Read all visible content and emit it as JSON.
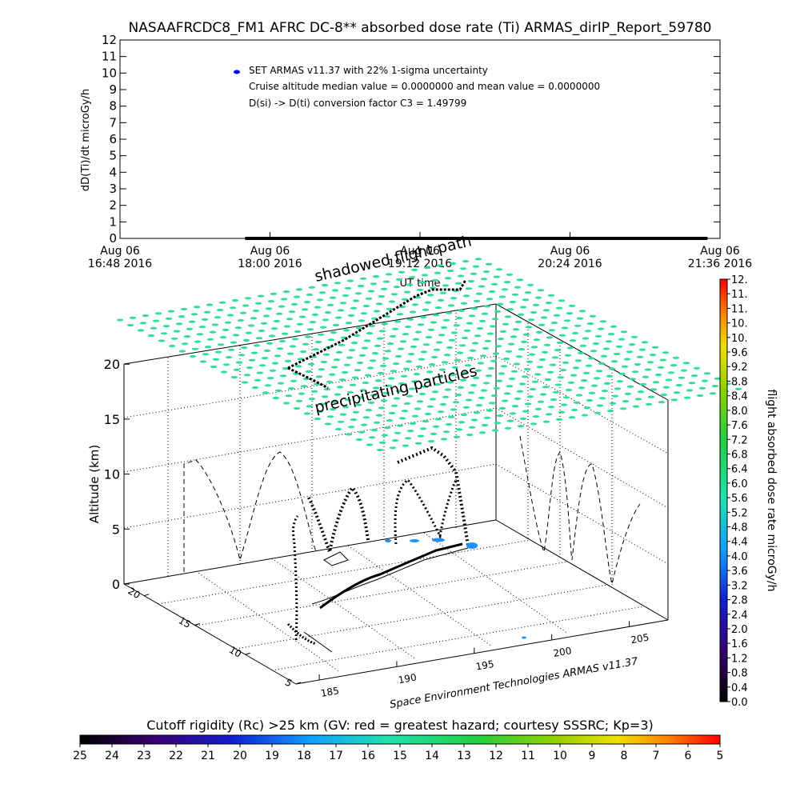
{
  "title": "NASAAFRCDC8_FM1 AFRC DC-8** absorbed dose rate (Ti) ARMAS_dirIP_Report_59780",
  "chart_data": [
    {
      "type": "line",
      "ylabel": "dD(Ti)/dt microGy/h",
      "xlabel": "UT time",
      "ylim": [
        0,
        12
      ],
      "yticks": [
        "0",
        "1",
        "2",
        "3",
        "4",
        "5",
        "6",
        "7",
        "8",
        "9",
        "10",
        "11",
        "12"
      ],
      "xticks": [
        {
          "line1": "Aug 06",
          "line2": "16:48 2016"
        },
        {
          "line1": "Aug 06",
          "line2": "18:00 2016"
        },
        {
          "line1": "Aug 06",
          "line2": "19:12 2016"
        },
        {
          "line1": "Aug 06",
          "line2": "20:24 2016"
        },
        {
          "line1": "Aug 06",
          "line2": "21:36 2016"
        }
      ],
      "x_start": "2016-08-06 16:48",
      "x_end": "2016-08-06 21:36",
      "series": [
        {
          "name": "SET ARMAS v11.37 with 22% 1-sigma uncertainty",
          "color": "#0000ff",
          "points": [
            [
              "2016-08-06 17:48",
              0
            ],
            [
              "2016-08-06 21:30",
              0
            ]
          ]
        }
      ],
      "legend": {
        "position": "top-left",
        "entries": [
          "SET ARMAS v11.37 with 22% 1-sigma uncertainty",
          "Cruise altitude median value = 0.0000000 and mean value = 0.0000000",
          "D(si) -> D(ti) conversion factor C3 = 1.49799"
        ]
      },
      "grid": false
    },
    {
      "type": "scatter",
      "title": "flight path",
      "zlabel": "Altitude (km)",
      "zticks": [
        "0",
        "5",
        "10",
        "15",
        "20"
      ],
      "x_ticks": [
        "185",
        "190",
        "195",
        "200",
        "205"
      ],
      "y_ticks": [
        "5",
        "10",
        "15",
        "20"
      ],
      "annotations": [
        "shadowed flight path",
        "precipitating particles"
      ],
      "footer": "Space Environment Technologies ARMAS v11.37",
      "grid": true
    }
  ],
  "colorbar_right": {
    "label": "flight absorbed dose rate microGy/h",
    "ticks": [
      "0.0",
      "0.4",
      "0.8",
      "1.2",
      "1.6",
      "2.0",
      "2.4",
      "2.8",
      "3.2",
      "3.6",
      "4.0",
      "4.4",
      "4.8",
      "5.2",
      "5.6",
      "6.0",
      "6.4",
      "6.8",
      "7.2",
      "7.6",
      "8.0",
      "8.4",
      "8.8",
      "9.2",
      "9.6",
      "10.",
      "10.",
      "11.",
      "11.",
      "12."
    ]
  },
  "colorbar_bottom": {
    "label": "Cutoff rigidity (Rc) >25 km (GV: red = greatest hazard; courtesy SSSRC; Kp=3)",
    "ticks": [
      "25",
      "24",
      "23",
      "22",
      "21",
      "20",
      "19",
      "18",
      "17",
      "16",
      "15",
      "14",
      "13",
      "12",
      "11",
      "10",
      "9",
      "8",
      "7",
      "6",
      "5"
    ]
  },
  "colors": {
    "particles": "#33dd99",
    "track": "#000000",
    "legend_marker": "#0000ff"
  }
}
